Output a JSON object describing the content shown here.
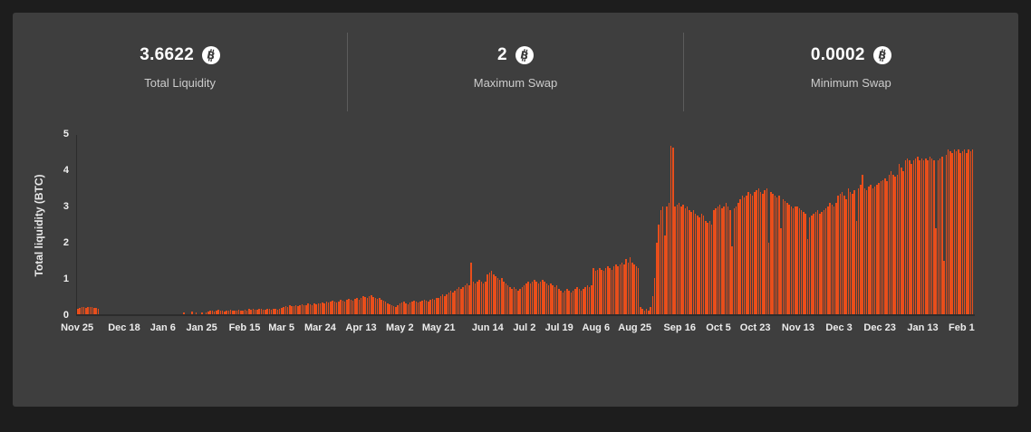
{
  "stats": {
    "items": [
      {
        "value": "3.6622",
        "label": "Total Liquidity",
        "icon": "bitcoin-icon"
      },
      {
        "value": "2",
        "label": "Maximum Swap",
        "icon": "bitcoin-icon"
      },
      {
        "value": "0.0002",
        "label": "Minimum Swap",
        "icon": "bitcoin-icon"
      }
    ]
  },
  "chart_data": {
    "type": "bar",
    "title": "",
    "xlabel": "",
    "ylabel": "Total liquidity (BTC)",
    "ylim": [
      0,
      5
    ],
    "y_ticks": [
      0,
      1,
      2,
      3,
      4,
      5
    ],
    "bar_color": "#e94e1b",
    "grid": false,
    "legend": false,
    "x_tick_labels": [
      "Nov 25",
      "Dec 18",
      "Jan 6",
      "Jan 25",
      "Feb 15",
      "Mar 5",
      "Mar 24",
      "Apr 13",
      "May 2",
      "May 21",
      "Jun 14",
      "Jul 2",
      "Jul 19",
      "Aug 6",
      "Aug 25",
      "Sep 16",
      "Oct 5",
      "Oct 23",
      "Nov 13",
      "Dec 3",
      "Dec 23",
      "Jan 13",
      "Feb 1"
    ],
    "x_tick_indices": [
      0,
      23,
      42,
      61,
      82,
      100,
      119,
      139,
      158,
      177,
      201,
      219,
      236,
      254,
      273,
      295,
      314,
      332,
      353,
      373,
      393,
      414,
      433
    ],
    "values": [
      0.15,
      0.18,
      0.2,
      0.2,
      0.18,
      0.2,
      0.19,
      0.2,
      0.18,
      0.17,
      0.16,
      0,
      0,
      0,
      0,
      0,
      0,
      0,
      0,
      0,
      0,
      0,
      0,
      0,
      0,
      0,
      0,
      0,
      0,
      0,
      0,
      0,
      0,
      0,
      0,
      0,
      0,
      0,
      0,
      0,
      0,
      0,
      0,
      0,
      0,
      0,
      0,
      0,
      0,
      0,
      0,
      0,
      0.05,
      0,
      0,
      0,
      0.08,
      0,
      0.06,
      0,
      0,
      0.06,
      0,
      0.05,
      0.08,
      0.1,
      0.1,
      0.08,
      0.1,
      0.12,
      0.1,
      0.1,
      0.08,
      0.1,
      0.1,
      0.12,
      0.1,
      0.1,
      0.1,
      0.12,
      0.1,
      0.1,
      0.12,
      0.1,
      0.14,
      0.12,
      0.15,
      0.13,
      0.12,
      0.14,
      0.15,
      0.12,
      0.13,
      0.15,
      0.14,
      0.12,
      0.15,
      0.14,
      0.13,
      0.15,
      0.18,
      0.2,
      0.22,
      0.2,
      0.25,
      0.22,
      0.24,
      0.25,
      0.22,
      0.25,
      0.28,
      0.25,
      0.26,
      0.3,
      0.28,
      0.25,
      0.3,
      0.28,
      0.3,
      0.3,
      0.32,
      0.3,
      0.35,
      0.32,
      0.35,
      0.38,
      0.35,
      0.32,
      0.35,
      0.4,
      0.38,
      0.35,
      0.4,
      0.42,
      0.4,
      0.38,
      0.42,
      0.45,
      0.4,
      0.45,
      0.5,
      0.48,
      0.45,
      0.5,
      0.52,
      0.48,
      0.45,
      0.42,
      0.45,
      0.4,
      0.38,
      0.35,
      0.3,
      0.28,
      0.25,
      0.22,
      0.2,
      0.25,
      0.3,
      0.32,
      0.35,
      0.3,
      0.28,
      0.32,
      0.35,
      0.38,
      0.35,
      0.32,
      0.35,
      0.38,
      0.4,
      0.38,
      0.35,
      0.4,
      0.42,
      0.4,
      0.45,
      0.45,
      0.5,
      0.55,
      0.5,
      0.55,
      0.6,
      0.65,
      0.6,
      0.65,
      0.7,
      0.75,
      0.7,
      0.75,
      0.8,
      0.85,
      0.8,
      1.45,
      0.9,
      0.85,
      0.9,
      0.95,
      0.9,
      0.85,
      0.9,
      1.1,
      1.15,
      1.2,
      1.1,
      1.05,
      1.0,
      0.95,
      1.0,
      0.9,
      0.85,
      0.8,
      0.75,
      0.7,
      0.75,
      0.7,
      0.65,
      0.7,
      0.75,
      0.8,
      0.85,
      0.9,
      0.85,
      0.9,
      0.95,
      0.9,
      0.85,
      0.9,
      0.95,
      0.9,
      0.85,
      0.8,
      0.85,
      0.8,
      0.75,
      0.8,
      0.7,
      0.65,
      0.6,
      0.65,
      0.7,
      0.65,
      0.6,
      0.65,
      0.7,
      0.75,
      0.7,
      0.65,
      0.7,
      0.75,
      0.8,
      0.75,
      0.8,
      1.3,
      1.2,
      1.25,
      1.3,
      1.25,
      1.2,
      1.3,
      1.35,
      1.3,
      1.25,
      1.35,
      1.4,
      1.35,
      1.4,
      1.45,
      1.4,
      1.55,
      1.45,
      1.6,
      1.45,
      1.4,
      1.35,
      1.3,
      0.2,
      0.15,
      0.1,
      0.15,
      0.1,
      0.2,
      0.5,
      1.0,
      2.0,
      2.5,
      2.9,
      3.0,
      2.2,
      3.0,
      3.1,
      4.7,
      4.65,
      3.0,
      3.05,
      3.1,
      3.0,
      3.05,
      2.95,
      3.0,
      2.9,
      2.85,
      2.9,
      2.8,
      2.75,
      2.7,
      2.8,
      2.75,
      2.6,
      2.55,
      2.6,
      2.5,
      2.9,
      2.95,
      3.0,
      3.05,
      2.95,
      3.0,
      3.1,
      3.0,
      2.9,
      1.9,
      2.95,
      3.0,
      3.1,
      3.2,
      3.3,
      3.25,
      3.3,
      3.4,
      3.35,
      3.3,
      3.4,
      3.45,
      3.5,
      3.4,
      3.35,
      3.45,
      3.5,
      2.0,
      3.4,
      3.35,
      3.3,
      3.25,
      3.3,
      2.4,
      3.2,
      3.15,
      3.1,
      3.05,
      3.0,
      2.95,
      3.0,
      3.0,
      2.95,
      2.9,
      2.85,
      2.8,
      2.1,
      2.7,
      2.75,
      2.8,
      2.85,
      2.9,
      2.8,
      2.85,
      2.9,
      2.95,
      3.0,
      3.1,
      3.05,
      3.0,
      3.1,
      3.3,
      3.35,
      3.4,
      3.3,
      3.2,
      3.5,
      3.4,
      3.35,
      3.45,
      2.6,
      3.5,
      3.6,
      3.9,
      3.5,
      3.45,
      3.55,
      3.6,
      3.5,
      3.55,
      3.6,
      3.65,
      3.7,
      3.75,
      3.8,
      3.7,
      3.9,
      4.0,
      3.9,
      3.85,
      3.9,
      4.2,
      4.1,
      4.0,
      4.3,
      4.35,
      4.3,
      4.2,
      4.3,
      4.35,
      4.4,
      4.3,
      4.35,
      4.3,
      4.35,
      4.3,
      4.4,
      4.35,
      4.3,
      2.4,
      4.3,
      4.35,
      4.4,
      1.5,
      4.45,
      4.6,
      4.55,
      4.5,
      4.6,
      4.55,
      4.6,
      4.5,
      4.55,
      4.6,
      4.5,
      4.6,
      4.55,
      4.6
    ]
  }
}
